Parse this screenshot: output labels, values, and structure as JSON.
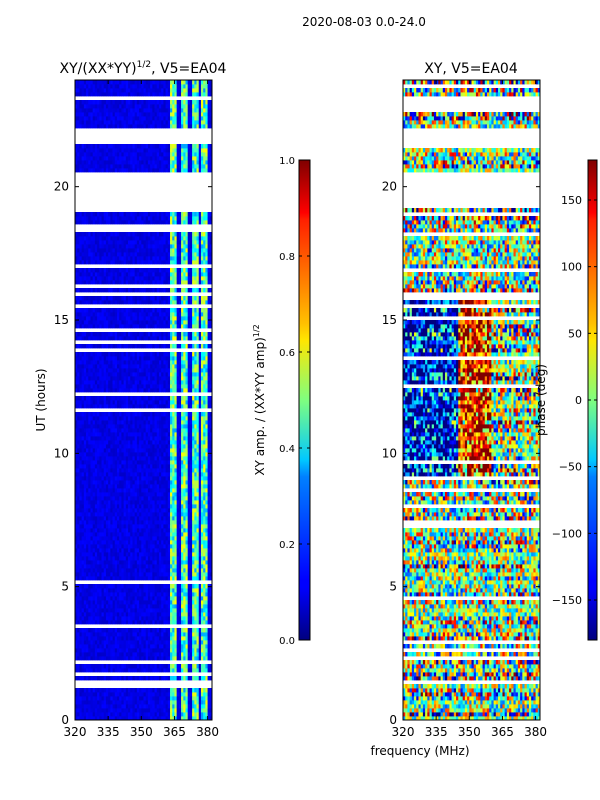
{
  "figure": {
    "suptitle": "2020-08-03 0.0-24.0",
    "shared_xlabel": "frequency (MHz)"
  },
  "chart_data": [
    {
      "type": "heatmap",
      "title": "XY/(XX*YY)",
      "title_exponent": "1/2",
      "title_suffix": ", V5=EA04",
      "xlabel": "frequency (MHz)",
      "ylabel": "UT (hours)",
      "xlim": [
        320,
        382
      ],
      "ylim": [
        0,
        24
      ],
      "xticks": [
        "320",
        "335",
        "350",
        "365",
        "380"
      ],
      "xtick_values": [
        320,
        335,
        350,
        365,
        380
      ],
      "yticks": [
        "0",
        "5",
        "10",
        "15",
        "20"
      ],
      "ytick_values": [
        0,
        5,
        10,
        15,
        20
      ],
      "colorbar": {
        "label": "XY amp. / (XX*YY amp)",
        "label_exponent": "1/2",
        "range": [
          0.0,
          1.0
        ],
        "ticks": [
          "0.0",
          "0.2",
          "0.4",
          "0.6",
          "0.8",
          "1.0"
        ],
        "tick_values": [
          0.0,
          0.2,
          0.4,
          0.6,
          0.8,
          1.0
        ],
        "colormap": "jet"
      },
      "blank_ut_ranges": [
        [
          19.2,
          20.5
        ],
        [
          21.6,
          22.2
        ],
        [
          1.35,
          1.55
        ],
        [
          15.9,
          16.05
        ],
        [
          23.2,
          23.35
        ]
      ],
      "bright_bands_mhz": [
        [
          363,
          366
        ],
        [
          368,
          371
        ],
        [
          373,
          376
        ],
        [
          377,
          380
        ]
      ],
      "background_value": 0.1,
      "band_value": 0.45
    },
    {
      "type": "heatmap",
      "title": "XY, V5=EA04",
      "xlabel": "frequency (MHz)",
      "ylabel": "",
      "xlim": [
        320,
        382
      ],
      "ylim": [
        0,
        24
      ],
      "xticks": [
        "320",
        "335",
        "350",
        "365",
        "380"
      ],
      "xtick_values": [
        320,
        335,
        350,
        365,
        380
      ],
      "yticks": [
        "0",
        "5",
        "10",
        "15",
        "20"
      ],
      "ytick_values": [
        0,
        5,
        10,
        15,
        20
      ],
      "colorbar": {
        "label": "phase (deg)",
        "range": [
          -180,
          180
        ],
        "ticks": [
          "−150",
          "−100",
          "−50",
          "0",
          "50",
          "100",
          "150"
        ],
        "tick_values": [
          -150,
          -100,
          -50,
          0,
          50,
          100,
          150
        ],
        "colormap": "jet"
      },
      "blank_ut_ranges": [
        [
          19.2,
          20.5
        ],
        [
          21.6,
          22.2
        ],
        [
          1.35,
          1.55
        ],
        [
          15.9,
          16.05
        ],
        [
          23.2,
          23.35
        ]
      ]
    }
  ]
}
